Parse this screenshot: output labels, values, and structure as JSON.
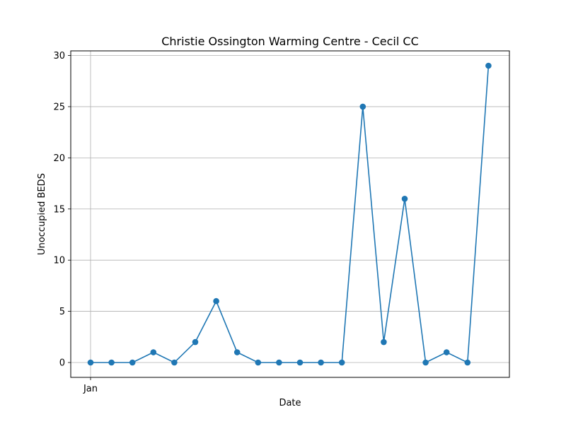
{
  "chart_data": {
    "type": "line",
    "title": "Christie Ossington Warming Centre - Cecil CC",
    "xlabel": "Date",
    "ylabel": "Unoccupied BEDS",
    "x_tick_labels": [
      "Jan"
    ],
    "y_ticks": [
      0,
      5,
      10,
      15,
      20,
      25,
      30
    ],
    "ylim": [
      -1.45,
      30.45
    ],
    "grid": true,
    "series": [
      {
        "color": "#1f77b4",
        "marker": "circle",
        "values": [
          0,
          0,
          0,
          1,
          0,
          2,
          6,
          1,
          0,
          0,
          0,
          0,
          0,
          25,
          2,
          16,
          0,
          1,
          0,
          29
        ]
      }
    ]
  }
}
